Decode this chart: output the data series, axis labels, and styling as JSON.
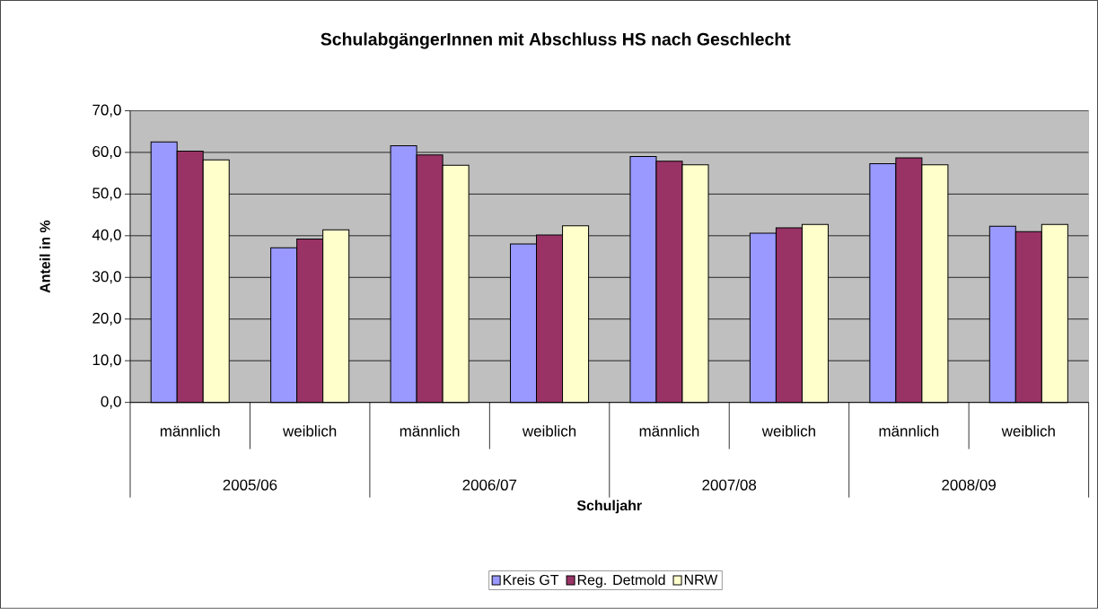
{
  "chart_data": {
    "type": "bar",
    "title": "SchulabgängerInnen mit Abschluss HS nach Geschlecht",
    "xlabel": "Schuljahr",
    "ylabel": "Anteil in %",
    "categories": [
      "männlich",
      "weiblich",
      "männlich",
      "weiblich",
      "männlich",
      "weiblich",
      "männlich",
      "weiblich"
    ],
    "annotations": [
      "2005/06",
      "2006/07",
      "2007/08",
      "2008/09"
    ],
    "series": [
      {
        "name": "Kreis GT",
        "color": "#9999ff",
        "values": [
          62.5,
          37.1,
          61.6,
          38.0,
          59.0,
          40.6,
          57.3,
          42.3
        ]
      },
      {
        "name": "Reg. Detmold",
        "color": "#993366",
        "values": [
          60.3,
          39.2,
          59.4,
          40.2,
          57.9,
          41.9,
          58.7,
          41.0
        ]
      },
      {
        "name": "NRW",
        "color": "#ffffcc",
        "values": [
          58.2,
          41.4,
          56.9,
          42.4,
          57.0,
          42.7,
          57.0,
          42.7
        ]
      }
    ],
    "ylim": [
      0,
      70
    ],
    "yticks": [
      {
        "value": 0,
        "label": "0,0"
      },
      {
        "value": 10,
        "label": "10,0"
      },
      {
        "value": 20,
        "label": "20,0"
      },
      {
        "value": 30,
        "label": "30,0"
      },
      {
        "value": 40,
        "label": "40,0"
      },
      {
        "value": 50,
        "label": "50,0"
      },
      {
        "value": 60,
        "label": "60,0"
      },
      {
        "value": 70,
        "label": "70,0"
      }
    ],
    "grid": "y",
    "legend": "bottom"
  }
}
